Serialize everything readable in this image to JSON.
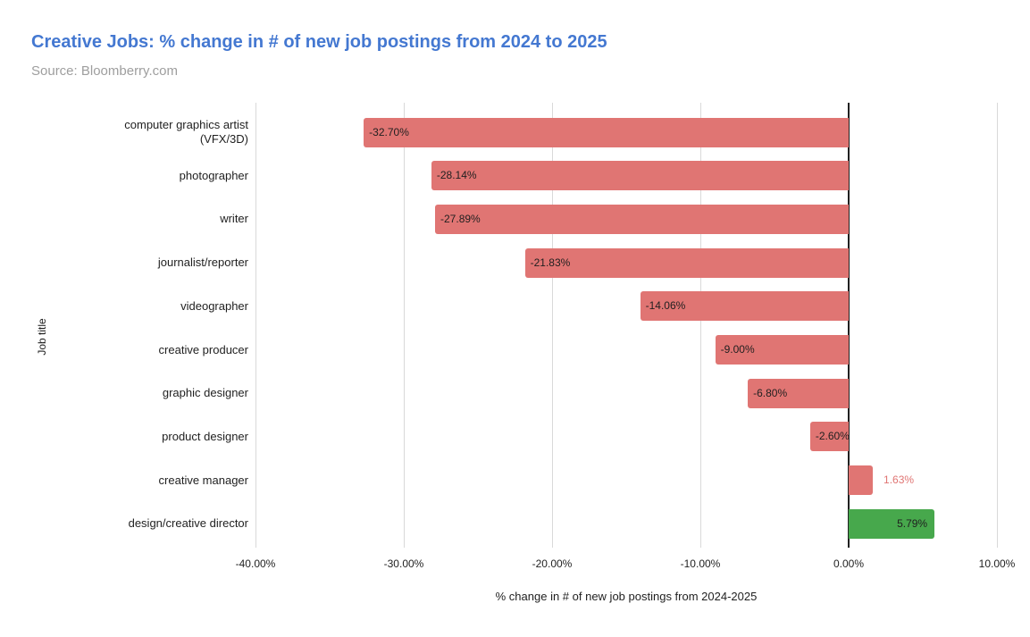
{
  "page": {
    "background": "#ffffff"
  },
  "chart_data": {
    "type": "bar",
    "orientation": "horizontal",
    "title": "Creative Jobs: % change in # of new job postings from 2024 to 2025",
    "subtitle": "Source: Bloomberry.com",
    "xlabel": "% change in # of new job postings from 2024-2025",
    "ylabel": "Job title",
    "xlim": [
      -40,
      10
    ],
    "grid": true,
    "legend": false,
    "x_ticks": [
      {
        "value": -40,
        "label": "-40.00%"
      },
      {
        "value": -30,
        "label": "-30.00%"
      },
      {
        "value": -20,
        "label": "-20.00%"
      },
      {
        "value": -10,
        "label": "-10.00%"
      },
      {
        "value": 0,
        "label": "0.00%"
      },
      {
        "value": 10,
        "label": "10.00%"
      }
    ],
    "rows": [
      {
        "category": "computer graphics artist\n(VFX/3D)",
        "value": -32.7,
        "label": "-32.70%",
        "bar_color": "#e07573",
        "label_position": "inside-left",
        "label_color": "#1f1f1f"
      },
      {
        "category": "photographer",
        "value": -28.14,
        "label": "-28.14%",
        "bar_color": "#e07573",
        "label_position": "inside-left",
        "label_color": "#1f1f1f"
      },
      {
        "category": "writer",
        "value": -27.89,
        "label": "-27.89%",
        "bar_color": "#e07573",
        "label_position": "inside-left",
        "label_color": "#1f1f1f"
      },
      {
        "category": "journalist/reporter",
        "value": -21.83,
        "label": "-21.83%",
        "bar_color": "#e07573",
        "label_position": "inside-left",
        "label_color": "#1f1f1f"
      },
      {
        "category": "videographer",
        "value": -14.06,
        "label": "-14.06%",
        "bar_color": "#e07573",
        "label_position": "inside-left",
        "label_color": "#1f1f1f"
      },
      {
        "category": "creative producer",
        "value": -9.0,
        "label": "-9.00%",
        "bar_color": "#e07573",
        "label_position": "inside-left",
        "label_color": "#1f1f1f"
      },
      {
        "category": "graphic designer",
        "value": -6.8,
        "label": "-6.80%",
        "bar_color": "#e07573",
        "label_position": "inside-left",
        "label_color": "#1f1f1f"
      },
      {
        "category": "product designer",
        "value": -2.6,
        "label": "-2.60%",
        "bar_color": "#e07573",
        "label_position": "inside-left",
        "label_color": "#1f1f1f"
      },
      {
        "category": "creative manager",
        "value": 1.63,
        "label": "1.63%",
        "bar_color": "#e07573",
        "label_position": "outside-right",
        "label_color": "#e07573"
      },
      {
        "category": "design/creative director",
        "value": 5.79,
        "label": "5.79%",
        "bar_color": "#47a84c",
        "label_position": "inside-right",
        "label_color": "#1f1f1f"
      }
    ],
    "colors": {
      "title": "#4478d1",
      "subtitle": "#9e9e9e",
      "negative_bar": "#e07573",
      "positive_bar": "#47a84c",
      "gridline": "#d9d9d9",
      "zero_line": "#212121",
      "axis_text": "#1f1f1f",
      "category_text": "#1f1f1f"
    }
  }
}
